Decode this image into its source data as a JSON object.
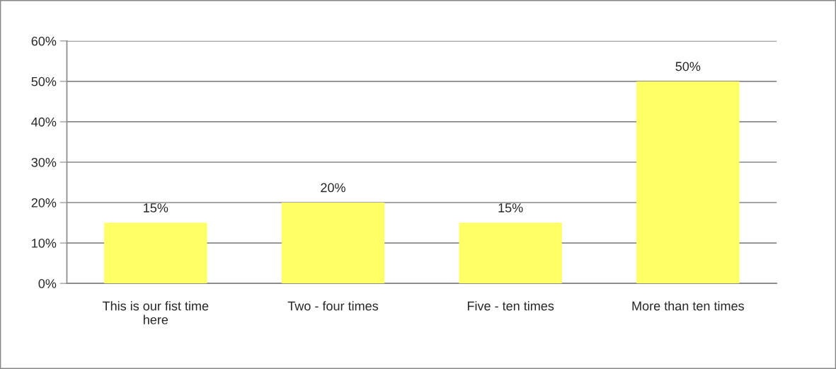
{
  "chart_data": {
    "type": "bar",
    "categories": [
      "This is our fist time\nhere",
      "Two - four times",
      "Five - ten times",
      "More than ten times"
    ],
    "values": [
      15,
      20,
      15,
      50
    ],
    "value_labels": [
      "15%",
      "20%",
      "15%",
      "50%"
    ],
    "color": "#ffff66",
    "ylim": [
      0,
      60
    ],
    "yticks": [
      {
        "value": 0,
        "label": "0%"
      },
      {
        "value": 10,
        "label": "10%"
      },
      {
        "value": 20,
        "label": "20%"
      },
      {
        "value": 30,
        "label": "30%"
      },
      {
        "value": 40,
        "label": "40%"
      },
      {
        "value": 50,
        "label": "50%"
      },
      {
        "value": 60,
        "label": "60%"
      }
    ],
    "grid": "y",
    "legend": false
  }
}
